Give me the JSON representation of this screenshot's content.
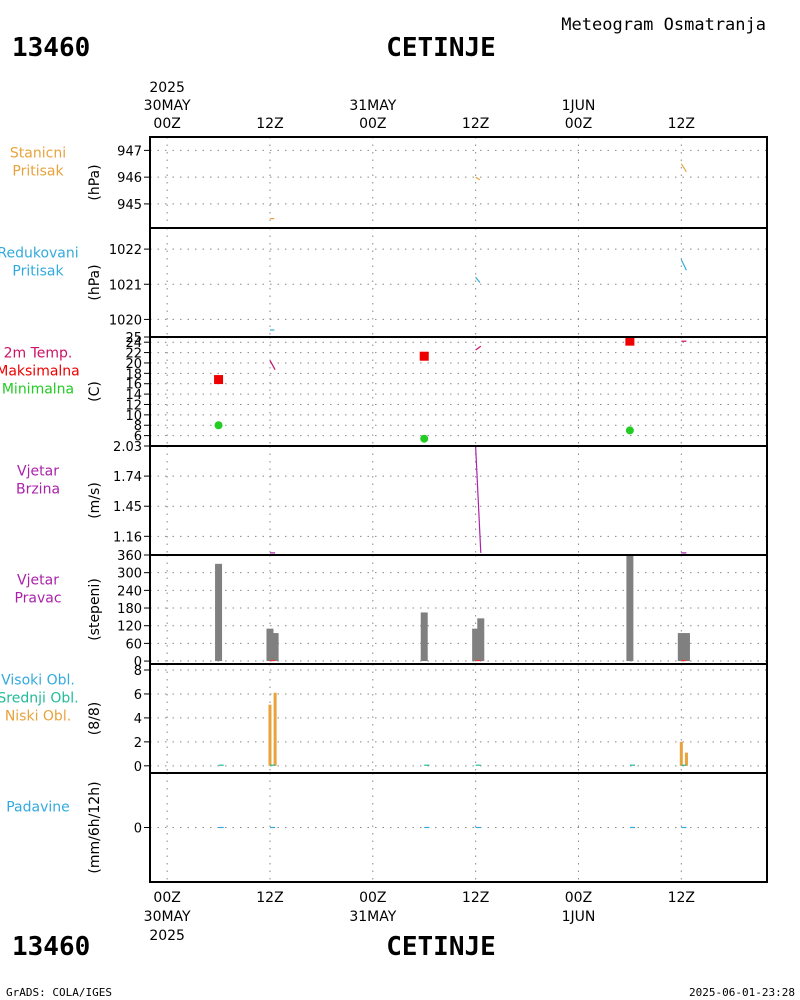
{
  "header": {
    "station_id": "13460",
    "city": "CETINJE",
    "title": "Meteogram Osmatranja"
  },
  "footer": {
    "left": "GrADS: COLA/IGES",
    "right": "2025-06-01-23:28"
  },
  "time_axis": {
    "top_year": "2025",
    "ticks": [
      {
        "t": 0,
        "hour": "00Z",
        "date": "30MAY",
        "year": "2025"
      },
      {
        "t": 12,
        "hour": "12Z"
      },
      {
        "t": 24,
        "hour": "00Z",
        "date": "31MAY"
      },
      {
        "t": 36,
        "hour": "12Z"
      },
      {
        "t": 48,
        "hour": "00Z",
        "date": "1JUN"
      },
      {
        "t": 60,
        "hour": "12Z"
      }
    ]
  },
  "chart_data": [
    {
      "id": "stanicni",
      "type": "line",
      "labels": [
        {
          "text": "Stanicni",
          "color": "#e8a33c"
        },
        {
          "text": "Pritisak",
          "color": "#e8a33c"
        }
      ],
      "ylabel": "(hPa)",
      "ylim": [
        944.1,
        947.5
      ],
      "yticks": [
        945,
        946,
        947
      ],
      "grid": true,
      "series": [
        {
          "color": "#e8a33c",
          "segments": [
            [
              [
                12,
                944.45
              ],
              [
                12.5,
                944.45
              ]
            ],
            [
              [
                36,
                946.0
              ],
              [
                36.5,
                945.9
              ]
            ],
            [
              [
                60,
                946.5
              ],
              [
                60.6,
                946.2
              ]
            ]
          ]
        }
      ]
    },
    {
      "id": "redukovani",
      "type": "line",
      "labels": [
        {
          "text": "Redukovani",
          "color": "#33aadd"
        },
        {
          "text": "Pritisak",
          "color": "#33aadd"
        }
      ],
      "ylabel": "(hPa)",
      "ylim": [
        1019.5,
        1022.6
      ],
      "yticks": [
        1020,
        1021,
        1022
      ],
      "grid": true,
      "series": [
        {
          "color": "#33aadd",
          "segments": [
            [
              [
                12,
                1019.7
              ],
              [
                12.5,
                1019.7
              ]
            ],
            [
              [
                36,
                1021.2
              ],
              [
                36.5,
                1021.05
              ]
            ],
            [
              [
                60,
                1021.7
              ],
              [
                60.6,
                1021.4
              ]
            ]
          ]
        }
      ]
    },
    {
      "id": "temperatura",
      "type": "line+scatter",
      "labels": [
        {
          "text": "2m Temp.",
          "color": "#cc1166"
        },
        {
          "text": "Maksimalna",
          "color": "#ee0000"
        },
        {
          "text": "Minimalna",
          "color": "#22cc22"
        }
      ],
      "ylabel": "(C)",
      "ylim": [
        4,
        25
      ],
      "yticks": [
        6,
        8,
        10,
        12,
        14,
        16,
        18,
        20,
        22,
        24,
        25
      ],
      "grid": true,
      "series": [
        {
          "color": "#cc1166",
          "segments": [
            [
              [
                12,
                20.5
              ],
              [
                12.6,
                18.7
              ]
            ],
            [
              [
                36,
                22.5
              ],
              [
                36.6,
                23.2
              ]
            ],
            [
              [
                60,
                24.2
              ],
              [
                60.6,
                24.2
              ]
            ]
          ]
        }
      ],
      "max_points": {
        "color": "#ee0000",
        "points": [
          [
            6,
            16.8
          ],
          [
            30,
            21.3
          ],
          [
            54,
            24.2
          ]
        ]
      },
      "min_points": {
        "color": "#22cc22",
        "points": [
          [
            6,
            8.0
          ],
          [
            30,
            5.4
          ],
          [
            54,
            7.0
          ]
        ]
      }
    },
    {
      "id": "vjetar_brzina",
      "type": "line",
      "labels": [
        {
          "text": "Vjetar",
          "color": "#aa22aa"
        },
        {
          "text": "Brzina",
          "color": "#aa22aa"
        }
      ],
      "ylabel": "(m/s)",
      "ylim": [
        0.98,
        2.03
      ],
      "yticks": [
        1.16,
        1.45,
        1.74,
        2.03
      ],
      "grid": true,
      "series": [
        {
          "color": "#aa22aa",
          "segments": [
            [
              [
                12,
                1.0
              ],
              [
                12.6,
                1.0
              ]
            ],
            [
              [
                36,
                2.03
              ],
              [
                36.6,
                1.0
              ]
            ],
            [
              [
                60,
                1.0
              ],
              [
                60.6,
                1.0
              ]
            ]
          ]
        }
      ]
    },
    {
      "id": "vjetar_pravac",
      "type": "bar",
      "labels": [
        {
          "text": "Vjetar",
          "color": "#aa22aa"
        },
        {
          "text": "Pravac",
          "color": "#aa22aa"
        }
      ],
      "ylabel": "(stepeni)",
      "ylim": [
        -10,
        360
      ],
      "yticks": [
        0,
        60,
        120,
        180,
        240,
        300,
        360
      ],
      "grid": true,
      "bar_color": "#808080",
      "bars": [
        [
          6,
          330
        ],
        [
          12,
          110
        ],
        [
          12.6,
          95
        ],
        [
          30,
          165
        ],
        [
          36,
          110
        ],
        [
          36.6,
          145
        ],
        [
          54,
          360
        ],
        [
          60,
          95
        ],
        [
          60.6,
          95
        ]
      ],
      "series": [
        {
          "color": "#ee3333",
          "segments": [
            [
              [
                12,
                2
              ],
              [
                12.6,
                2
              ]
            ],
            [
              [
                36,
                2
              ],
              [
                36.6,
                2
              ]
            ],
            [
              [
                60,
                2
              ],
              [
                60.6,
                2
              ]
            ]
          ]
        }
      ]
    },
    {
      "id": "oblaci",
      "type": "bar",
      "labels": [
        {
          "text": "Visoki Obl.",
          "color": "#33aadd"
        },
        {
          "text": "Srednji Obl.",
          "color": "#22bb99"
        },
        {
          "text": "Niski Obl.",
          "color": "#e8a33c"
        }
      ],
      "ylabel": "(8/8)",
      "ylim": [
        -0.6,
        8.5
      ],
      "yticks": [
        0,
        2,
        4,
        6,
        8
      ],
      "grid": true,
      "bar_color": "#e8a33c",
      "bars": [
        [
          12,
          5.1
        ],
        [
          12.6,
          6.1
        ],
        [
          60,
          2.0
        ],
        [
          60.6,
          1.1
        ]
      ],
      "series": [
        {
          "color": "#22bb99",
          "segments": [
            [
              [
                6,
                0.05
              ],
              [
                6.6,
                0.05
              ]
            ],
            [
              [
                12,
                0.05
              ],
              [
                12.6,
                0.05
              ]
            ],
            [
              [
                30,
                0.05
              ],
              [
                30.6,
                0.05
              ]
            ],
            [
              [
                36,
                0.05
              ],
              [
                36.6,
                0.05
              ]
            ],
            [
              [
                54,
                0.05
              ],
              [
                54.6,
                0.05
              ]
            ],
            [
              [
                60,
                0.05
              ],
              [
                60.6,
                0.05
              ]
            ]
          ]
        }
      ]
    },
    {
      "id": "padavine",
      "type": "line",
      "labels": [
        {
          "text": "Padavine",
          "color": "#33aadd"
        }
      ],
      "ylabel": "(mm/6h/12h)",
      "ylim": [
        -1,
        1
      ],
      "yticks": [
        0
      ],
      "grid": true,
      "series": [
        {
          "color": "#33aadd",
          "segments": [
            [
              [
                6,
                0
              ],
              [
                6.6,
                0
              ]
            ],
            [
              [
                12,
                0
              ],
              [
                12.6,
                0
              ]
            ],
            [
              [
                30,
                0
              ],
              [
                30.6,
                0
              ]
            ],
            [
              [
                36,
                0
              ],
              [
                36.6,
                0
              ]
            ],
            [
              [
                54,
                0
              ],
              [
                54.6,
                0
              ]
            ],
            [
              [
                60,
                0
              ],
              [
                60.6,
                0
              ]
            ]
          ]
        }
      ]
    }
  ]
}
